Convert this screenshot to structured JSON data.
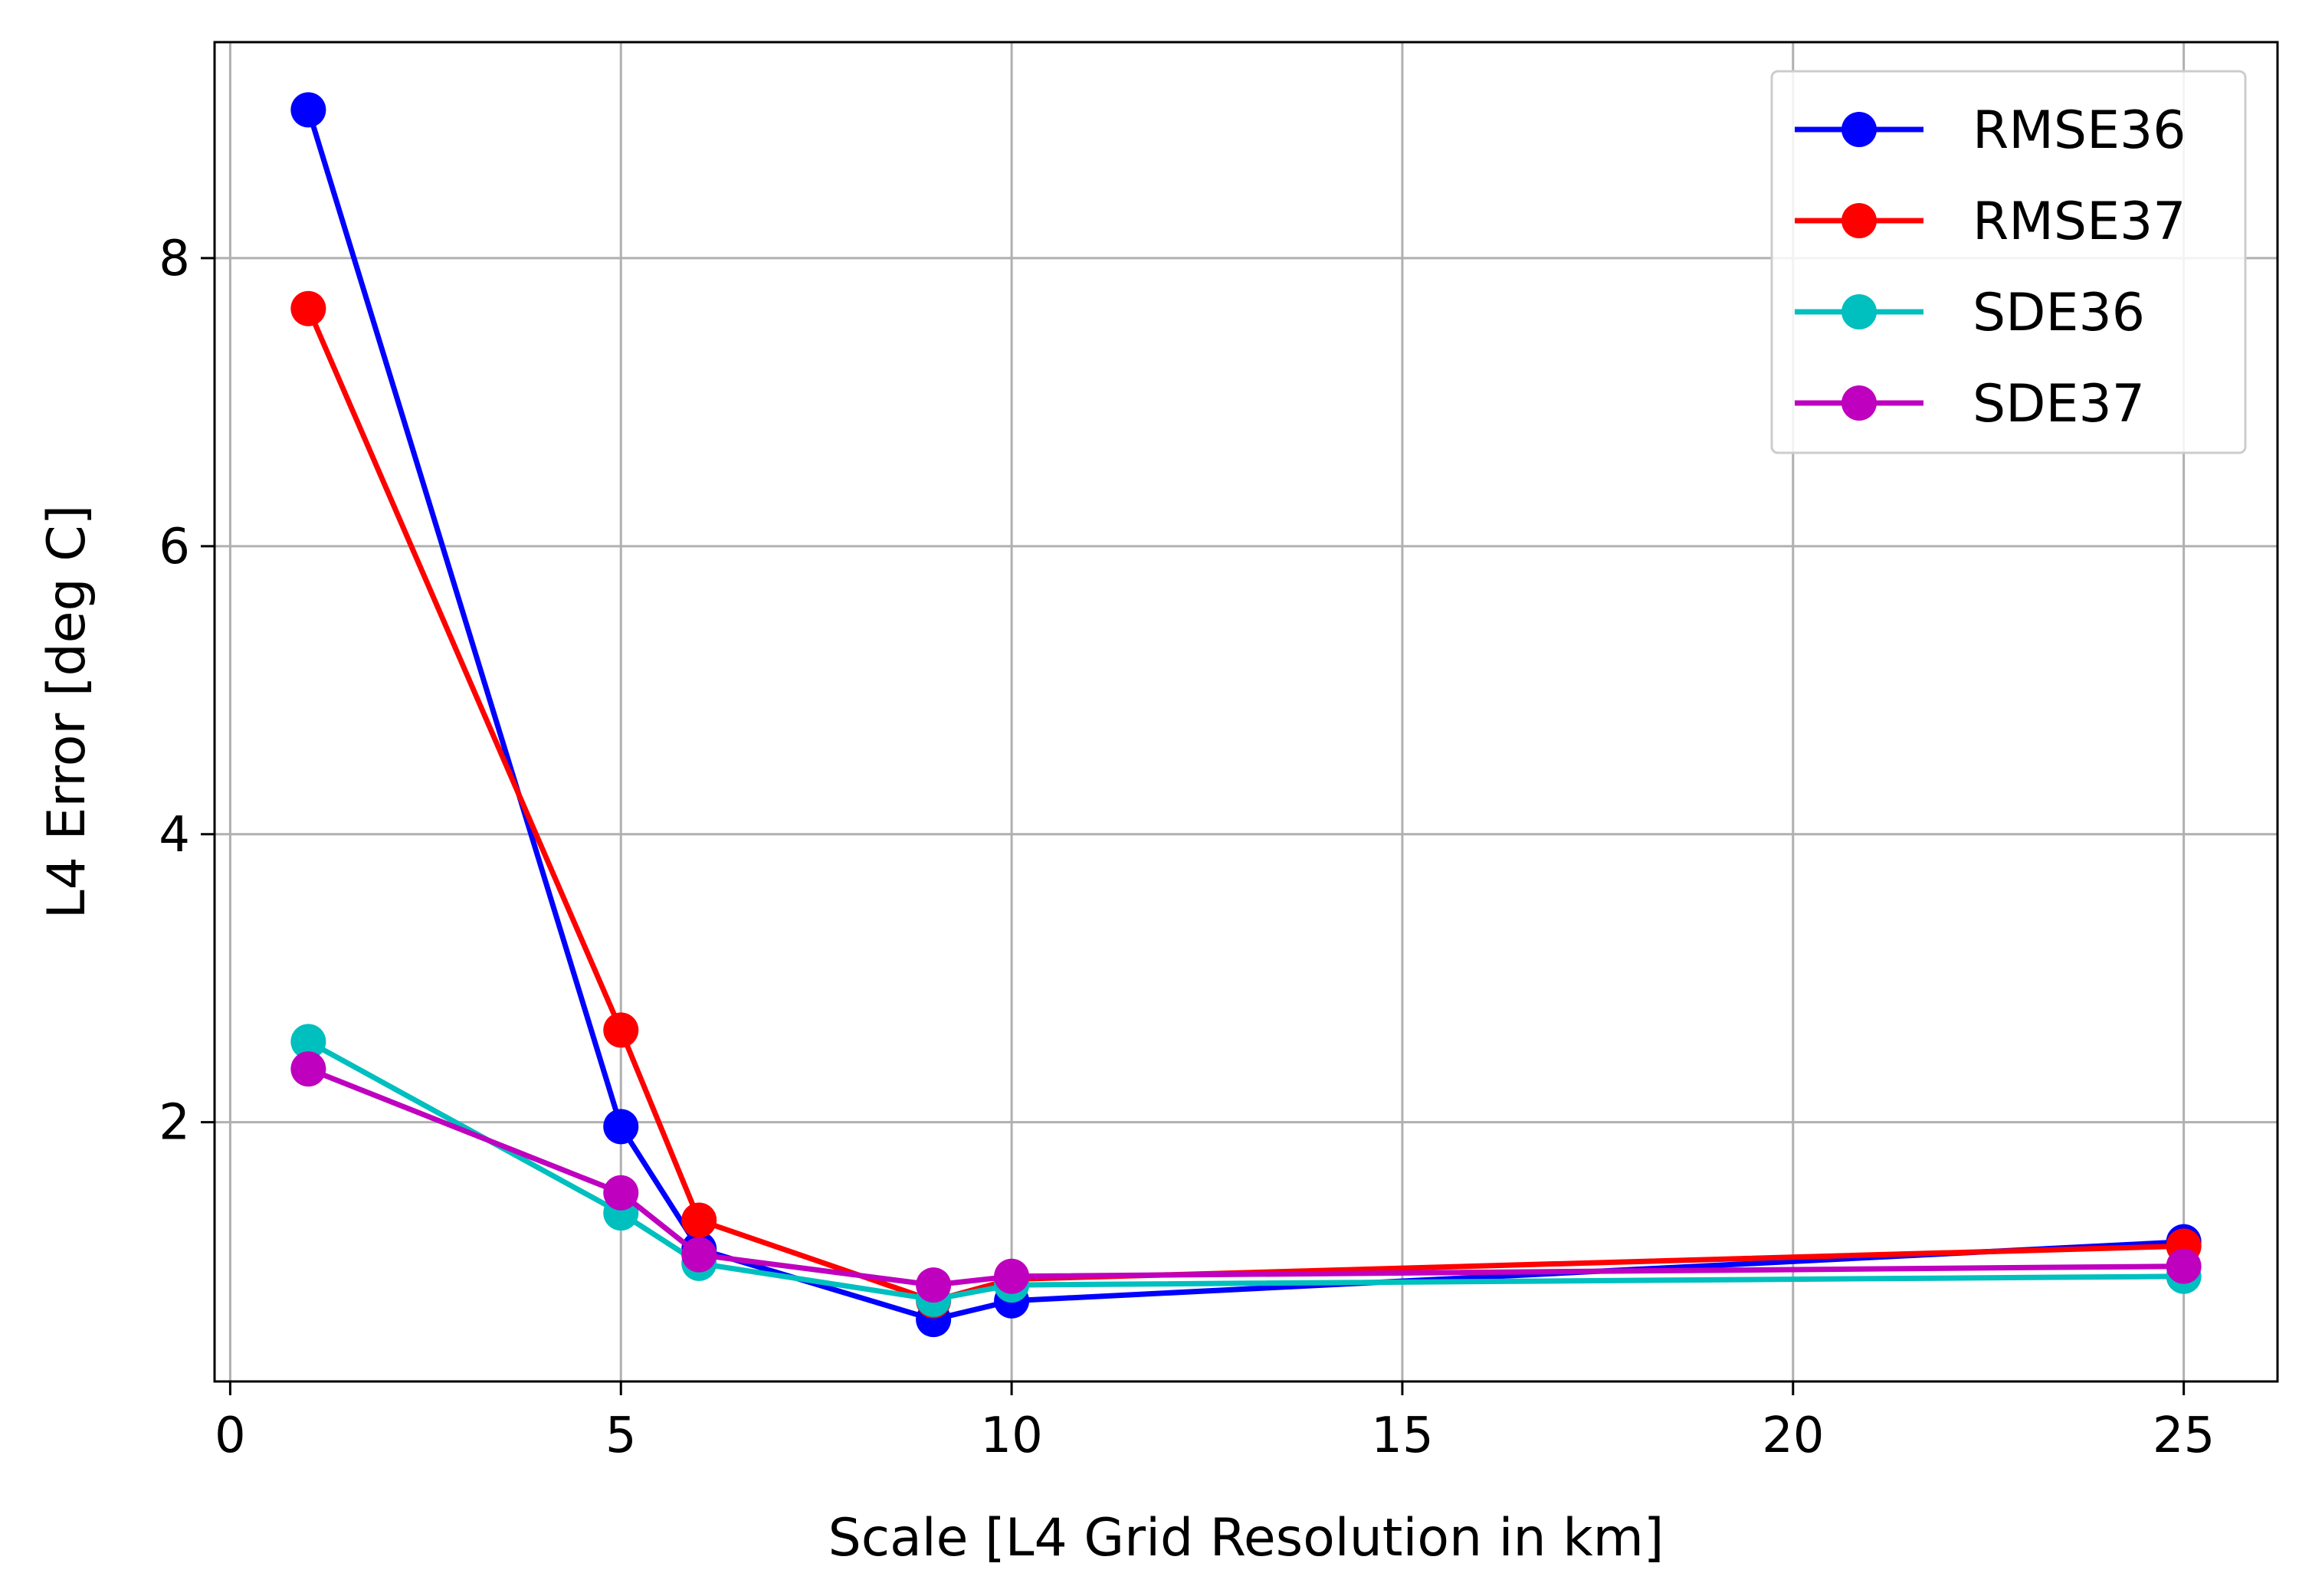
{
  "chart_data": {
    "type": "line",
    "title": "",
    "xlabel": "Scale [L4 Grid Resolution in km]",
    "ylabel": "L4 Error [deg C]",
    "x": [
      1,
      5,
      6,
      9,
      10,
      25
    ],
    "xlim": [
      -0.2,
      26.2
    ],
    "ylim": [
      0.2,
      9.5
    ],
    "xticks": [
      0,
      5,
      10,
      15,
      20,
      25
    ],
    "yticks": [
      2,
      4,
      6,
      8
    ],
    "grid": true,
    "legend_position": "top-right",
    "series": [
      {
        "name": "RMSE36",
        "color": "#0000ff",
        "values": [
          9.03,
          1.97,
          1.12,
          0.63,
          0.76,
          1.17
        ]
      },
      {
        "name": "RMSE37",
        "color": "#ff0000",
        "values": [
          7.65,
          2.64,
          1.32,
          0.76,
          0.91,
          1.14
        ]
      },
      {
        "name": "SDE36",
        "color": "#00bfbf",
        "values": [
          2.56,
          1.37,
          1.02,
          0.77,
          0.87,
          0.93
        ]
      },
      {
        "name": "SDE37",
        "color": "#bf00bf",
        "values": [
          2.37,
          1.51,
          1.08,
          0.87,
          0.93,
          1.0
        ]
      }
    ]
  }
}
